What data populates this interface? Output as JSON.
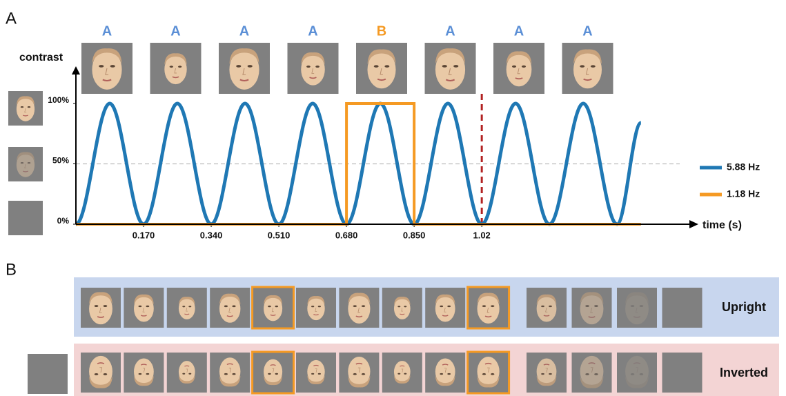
{
  "chart_data": {
    "type": "line",
    "y_label": "contrast",
    "x_label": "time (s)",
    "xlim": [
      0,
      1.54
    ],
    "ylim": [
      0,
      100
    ],
    "xticks": [
      {
        "value": 0.17,
        "label": "0.170"
      },
      {
        "value": 0.34,
        "label": "0.340"
      },
      {
        "value": 0.51,
        "label": "0.510"
      },
      {
        "value": 0.68,
        "label": "0.680"
      },
      {
        "value": 0.85,
        "label": "0.850"
      },
      1.02
    ],
    "yticks": [
      {
        "value": 0,
        "label": "0%"
      },
      {
        "value": 50,
        "label": "50%"
      },
      {
        "value": 100,
        "label": "100%"
      }
    ],
    "hline": 50,
    "vline": 1.02,
    "vline_color": "#b22222",
    "series": [
      {
        "name": "5.88 Hz",
        "color": "#1f78b4",
        "x": [
          0,
          0.085,
          0.17,
          0.255,
          0.34,
          0.425,
          0.51,
          0.595,
          0.68,
          0.765,
          0.85,
          0.935,
          1.02,
          1.105,
          1.19,
          1.275,
          1.36,
          1.42
        ],
        "values": [
          0,
          100,
          0,
          100,
          0,
          100,
          0,
          100,
          0,
          100,
          0,
          100,
          0,
          100,
          0,
          100,
          0,
          84
        ]
      },
      {
        "name": "1.18 Hz",
        "color": "#f59a23",
        "x": [
          0,
          0.68,
          0.68,
          0.85,
          0.85,
          1.42
        ],
        "values": [
          0,
          0,
          100,
          100,
          0,
          0
        ]
      }
    ]
  },
  "figure": {
    "panel_labels": [
      "A",
      "B"
    ],
    "stimulus_labels": [
      "A",
      "A",
      "A",
      "A",
      "B",
      "A",
      "A",
      "A"
    ],
    "conditions": [
      "Upright",
      "Inverted"
    ]
  }
}
